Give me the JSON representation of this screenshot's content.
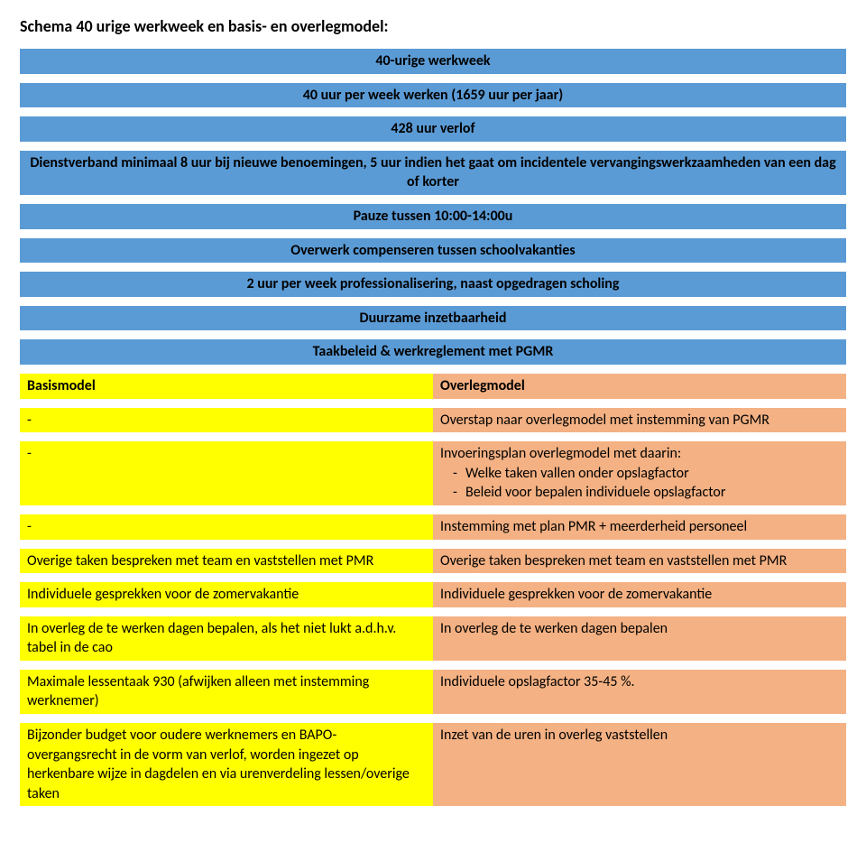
{
  "title": "Schema 40 urige werkweek en basis- en overlegmodel:",
  "colors": {
    "blue": "#5b9bd5",
    "yellow": "#ffff00",
    "orange": "#f4b183",
    "white": "#ffffff",
    "text": "#000000"
  },
  "full_rows": [
    "40-urige werkweek",
    "40 uur per week werken (1659 uur per jaar)",
    "428 uur verlof",
    "Dienstverband minimaal 8 uur bij nieuwe benoemingen, 5 uur indien het gaat om incidentele vervangingswerkzaamheden van een dag of korter",
    "Pauze tussen 10:00-14:00u",
    "Overwerk compenseren tussen schoolvakanties",
    "2 uur per week professionalisering, naast opgedragen scholing",
    "Duurzame inzetbaarheid",
    "Taakbeleid & werkreglement met PGMR"
  ],
  "header": {
    "left": "Basismodel",
    "right": "Overlegmodel"
  },
  "rows": [
    {
      "left": "-",
      "right": "Overstap naar overlegmodel met instemming van PGMR",
      "sub": null
    },
    {
      "left": "-",
      "right": "Invoeringsplan overlegmodel met daarin:",
      "sub": [
        "Welke taken vallen onder opslagfactor",
        "Beleid voor bepalen individuele opslagfactor"
      ]
    },
    {
      "left": "-",
      "right": "Instemming met plan PMR + meerderheid personeel",
      "sub": null
    },
    {
      "left": "Overige taken bespreken met team en vaststellen met PMR",
      "right": "Overige taken bespreken met team en vaststellen met PMR",
      "sub": null
    },
    {
      "left": "Individuele gesprekken voor de zomervakantie",
      "right": "Individuele gesprekken voor de zomervakantie",
      "sub": null
    },
    {
      "left": "In overleg de te werken dagen bepalen, als het niet lukt a.d.h.v. tabel in de cao",
      "right": "In overleg de te werken dagen bepalen",
      "sub": null
    },
    {
      "left": "Maximale lessentaak 930 (afwijken alleen met instemming werknemer)",
      "right": "Individuele opslagfactor 35-45 %.",
      "sub": null
    },
    {
      "left": "Bijzonder budget voor oudere werknemers en BAPO-overgangsrecht in de vorm van verlof, worden ingezet op herkenbare wijze in dagdelen en via urenverdeling lessen/overige taken",
      "right": "Inzet van de uren in overleg vaststellen",
      "sub": null
    }
  ]
}
